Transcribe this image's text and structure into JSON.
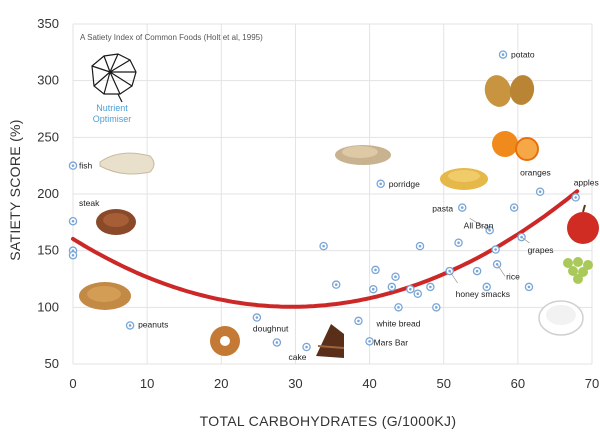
{
  "chart_data": {
    "type": "scatter",
    "title": "A Satiety Index of Common Foods (Holt et al, 1995)",
    "xlabel": "TOTAL CARBOHYDRATES (G/1000KJ)",
    "ylabel": "SATIETY SCORE (%)",
    "xlim": [
      0,
      70
    ],
    "ylim": [
      50,
      350
    ],
    "xticks": [
      0,
      10,
      20,
      30,
      40,
      50,
      60,
      70
    ],
    "yticks": [
      50,
      100,
      150,
      200,
      250,
      300,
      350
    ],
    "grid": true,
    "points": [
      {
        "x": 0,
        "y": 225,
        "label": "fish"
      },
      {
        "x": 0,
        "y": 176,
        "label": "steak"
      },
      {
        "x": 0,
        "y": 150,
        "label": ""
      },
      {
        "x": 0,
        "y": 146,
        "label": ""
      },
      {
        "x": 7.7,
        "y": 84,
        "label": "peanuts"
      },
      {
        "x": 24.8,
        "y": 91,
        "label": "doughnut"
      },
      {
        "x": 27.5,
        "y": 69,
        "label": ""
      },
      {
        "x": 31.5,
        "y": 65,
        "label": "cake"
      },
      {
        "x": 33.8,
        "y": 154,
        "label": ""
      },
      {
        "x": 35.5,
        "y": 120,
        "label": ""
      },
      {
        "x": 38.5,
        "y": 88,
        "label": ""
      },
      {
        "x": 40,
        "y": 70,
        "label": "Mars Bar"
      },
      {
        "x": 40.5,
        "y": 116,
        "label": ""
      },
      {
        "x": 40.8,
        "y": 133,
        "label": ""
      },
      {
        "x": 41.5,
        "y": 209,
        "label": "porridge"
      },
      {
        "x": 43,
        "y": 118,
        "label": ""
      },
      {
        "x": 43.5,
        "y": 127,
        "label": ""
      },
      {
        "x": 43.9,
        "y": 100,
        "label": "white bread"
      },
      {
        "x": 45.5,
        "y": 116,
        "label": ""
      },
      {
        "x": 46.5,
        "y": 112,
        "label": ""
      },
      {
        "x": 46.8,
        "y": 154,
        "label": ""
      },
      {
        "x": 48.2,
        "y": 118,
        "label": ""
      },
      {
        "x": 49,
        "y": 100,
        "label": ""
      },
      {
        "x": 50.8,
        "y": 132,
        "label": "honey smacks"
      },
      {
        "x": 52,
        "y": 157,
        "label": ""
      },
      {
        "x": 52.5,
        "y": 188,
        "label": "pasta"
      },
      {
        "x": 54.5,
        "y": 132,
        "label": ""
      },
      {
        "x": 55.8,
        "y": 118,
        "label": ""
      },
      {
        "x": 56.2,
        "y": 168,
        "label": "All Bran"
      },
      {
        "x": 57,
        "y": 151,
        "label": ""
      },
      {
        "x": 57.2,
        "y": 138,
        "label": "rice"
      },
      {
        "x": 58,
        "y": 323,
        "label": "potato"
      },
      {
        "x": 59.5,
        "y": 188,
        "label": ""
      },
      {
        "x": 60.5,
        "y": 162,
        "label": "grapes"
      },
      {
        "x": 61.5,
        "y": 118,
        "label": ""
      },
      {
        "x": 63,
        "y": 202,
        "label": "oranges"
      },
      {
        "x": 67.8,
        "y": 197,
        "label": "apples"
      }
    ],
    "fit_line": {
      "type": "quadratic",
      "coefficients": [
        160.4,
        -4.06,
        0.0688
      ],
      "x_range": [
        0,
        68
      ],
      "color": "#cc2828"
    },
    "annotations": [
      {
        "text": "Nutrient"
      },
      {
        "text": "Optimiser"
      }
    ],
    "colors": {
      "point": "#7aa6d6",
      "grid": "#e3e3e3",
      "axis_text": "#333333"
    }
  }
}
